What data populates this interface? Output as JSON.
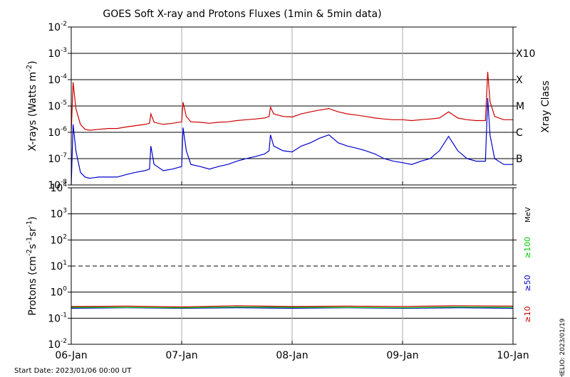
{
  "chart_data": [
    {
      "type": "line",
      "title": "GOES Soft X-ray and Protons Fluxes   (1min & 5min data)",
      "ylabel": {
        "base": "X-rays (Watts m",
        "sup": "-2",
        "end": ")"
      },
      "yscale": "log",
      "ylim": [
        1e-08,
        0.01
      ],
      "y_ticks": [
        {
          "base": "10",
          "exp": "-2",
          "value": 0.01
        },
        {
          "base": "10",
          "exp": "-3",
          "value": 0.001
        },
        {
          "base": "10",
          "exp": "-4",
          "value": 0.0001
        },
        {
          "base": "10",
          "exp": "-5",
          "value": 1e-05
        },
        {
          "base": "10",
          "exp": "-6",
          "value": 1e-06
        },
        {
          "base": "10",
          "exp": "-7",
          "value": 1e-07
        },
        {
          "base": "10",
          "exp": "-8",
          "value": 1e-08
        }
      ],
      "right_axis_label": "Xray Class",
      "class_labels": [
        {
          "label": "X10",
          "value": 0.001
        },
        {
          "label": "X",
          "value": 0.0001
        },
        {
          "label": "M",
          "value": 1e-05
        },
        {
          "label": "C",
          "value": 1e-06
        },
        {
          "label": "B",
          "value": 1e-07
        }
      ],
      "x_unit": "hours since 06-Jan 00:00 UT",
      "xlim": [
        0,
        96
      ],
      "series": [
        {
          "color": "#cc0000",
          "x": [
            0,
            0.4,
            1,
            2,
            3,
            4,
            6,
            8,
            10,
            12,
            14,
            16,
            17,
            17.3,
            18,
            20,
            22,
            24,
            24.3,
            25,
            26,
            28,
            30,
            32,
            34,
            36,
            38,
            40,
            42,
            43,
            43.3,
            44,
            46,
            48,
            50,
            52,
            54,
            56,
            58,
            60,
            62,
            64,
            66,
            68,
            70,
            72,
            74,
            76,
            78,
            80,
            82,
            84,
            86,
            88,
            90,
            90.5,
            91,
            92,
            94,
            96
          ],
          "y": [
            1e-06,
            8e-05,
            8e-06,
            2e-06,
            1.3e-06,
            1.2e-06,
            1.3e-06,
            1.4e-06,
            1.4e-06,
            1.6e-06,
            1.8e-06,
            2e-06,
            2.2e-06,
            5e-06,
            2.4e-06,
            2e-06,
            2.2e-06,
            2.5e-06,
            1.4e-05,
            4e-06,
            2.5e-06,
            2.4e-06,
            2.2e-06,
            2.4e-06,
            2.5e-06,
            2.8e-06,
            3e-06,
            3.2e-06,
            3.5e-06,
            4e-06,
            9e-06,
            5e-06,
            4e-06,
            3.8e-06,
            5e-06,
            6e-06,
            7e-06,
            8e-06,
            6e-06,
            5e-06,
            4.5e-06,
            4e-06,
            3.5e-06,
            3.2e-06,
            3e-06,
            3e-06,
            2.8e-06,
            3e-06,
            3.2e-06,
            3.5e-06,
            6e-06,
            3.5e-06,
            3e-06,
            2.8e-06,
            2.8e-06,
            0.0002,
            1.5e-05,
            4e-06,
            3e-06,
            3e-06
          ]
        },
        {
          "color": "#0000cc",
          "x": [
            0,
            0.4,
            1,
            2,
            3,
            4,
            6,
            8,
            10,
            12,
            14,
            16,
            17,
            17.3,
            18,
            20,
            22,
            24,
            24.3,
            25,
            26,
            28,
            30,
            32,
            34,
            36,
            38,
            40,
            42,
            43,
            43.3,
            44,
            46,
            48,
            50,
            52,
            54,
            56,
            58,
            60,
            62,
            64,
            66,
            68,
            70,
            72,
            74,
            76,
            78,
            80,
            82,
            84,
            86,
            88,
            90,
            90.5,
            91,
            92,
            94,
            96
          ],
          "y": [
            1e-08,
            2e-06,
            2e-07,
            3e-08,
            2e-08,
            1.8e-08,
            2e-08,
            2e-08,
            2e-08,
            2.5e-08,
            3e-08,
            3.5e-08,
            4e-08,
            3e-07,
            6e-08,
            3.5e-08,
            4e-08,
            5e-08,
            1.5e-06,
            2e-07,
            6e-08,
            5e-08,
            4e-08,
            5e-08,
            6e-08,
            8e-08,
            1e-07,
            1.2e-07,
            1.5e-07,
            2e-07,
            8e-07,
            3e-07,
            2e-07,
            1.8e-07,
            3e-07,
            4e-07,
            6e-07,
            8e-07,
            4e-07,
            3e-07,
            2.5e-07,
            2e-07,
            1.5e-07,
            1e-07,
            8e-08,
            7e-08,
            6e-08,
            8e-08,
            1e-07,
            2e-07,
            7e-07,
            2e-07,
            1e-07,
            8e-08,
            8e-08,
            2e-05,
            8e-07,
            1e-07,
            6e-08,
            6e-08
          ]
        }
      ]
    },
    {
      "type": "line",
      "ylabel": {
        "base": "Protons (cm",
        "sup1": "-2",
        "mid1": "s",
        "sup2": "-1",
        "mid2": "sr",
        "sup3": "-1",
        "end": ")"
      },
      "yscale": "log",
      "ylim": [
        0.01,
        10000
      ],
      "y_ticks": [
        {
          "base": "10",
          "exp": "4",
          "value": 10000
        },
        {
          "base": "10",
          "exp": "3",
          "value": 1000
        },
        {
          "base": "10",
          "exp": "2",
          "value": 100
        },
        {
          "base": "10",
          "exp": "1",
          "value": 10
        },
        {
          "base": "10",
          "exp": "0",
          "value": 1
        },
        {
          "base": "10",
          "exp": "-1",
          "value": 0.1
        },
        {
          "base": "10",
          "exp": "-2",
          "value": 0.01
        }
      ],
      "threshold_line": {
        "value": 10,
        "style": "dashed"
      },
      "unit_label": "MeV",
      "x_unit": "hours since 06-Jan 00:00 UT",
      "xlim": [
        0,
        96
      ],
      "series": [
        {
          "name": "≥10",
          "color": "#cc0000",
          "x": [
            0,
            12,
            24,
            36,
            48,
            60,
            72,
            84,
            96
          ],
          "y": [
            0.28,
            0.29,
            0.27,
            0.3,
            0.28,
            0.29,
            0.28,
            0.3,
            0.29
          ]
        },
        {
          "name": "≥50",
          "color": "#0000cc",
          "x": [
            0,
            12,
            24,
            36,
            48,
            60,
            72,
            84,
            96
          ],
          "y": [
            0.24,
            0.25,
            0.24,
            0.25,
            0.24,
            0.25,
            0.24,
            0.25,
            0.24
          ]
        },
        {
          "name": "≥100",
          "color": "#00cc00",
          "x": [
            0,
            12,
            24,
            36,
            48,
            60,
            72,
            84,
            96
          ],
          "y": [
            0.26,
            0.26,
            0.25,
            0.27,
            0.26,
            0.26,
            0.25,
            0.27,
            0.26
          ]
        }
      ]
    }
  ],
  "x_axis": {
    "ticks": [
      {
        "label": "06-Jan",
        "value": 0
      },
      {
        "label": "07-Jan",
        "value": 24
      },
      {
        "label": "08-Jan",
        "value": 48
      },
      {
        "label": "09-Jan",
        "value": 72
      },
      {
        "label": "10-Jan",
        "value": 96
      }
    ]
  },
  "start_date": "Start Date: 2023/01/06 00:00 UT",
  "credit": "HELIO: 2023/01/19"
}
